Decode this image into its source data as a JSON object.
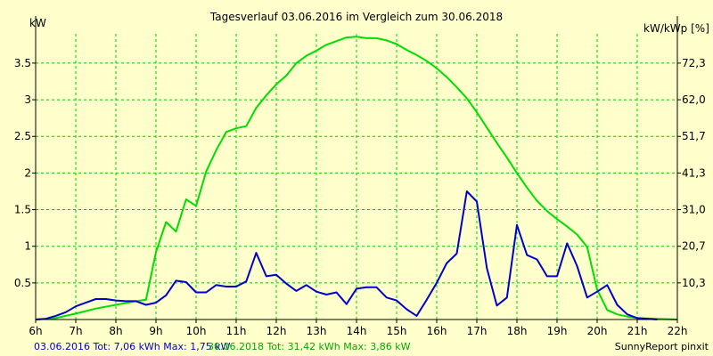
{
  "chart_data": {
    "type": "line",
    "title": "Tagesverlauf 03.06.2016 im Vergleich zum 30.06.2018",
    "ylabel": "kW",
    "y2label": "kW/kWp [%]",
    "xlim": [
      6,
      22
    ],
    "ylim": [
      0,
      3.9
    ],
    "x_ticks": [
      6,
      7,
      8,
      9,
      10,
      11,
      12,
      13,
      14,
      15,
      16,
      17,
      18,
      19,
      20,
      21,
      22
    ],
    "x_tick_labels": [
      "6h",
      "7h",
      "8h",
      "9h",
      "10h",
      "11h",
      "12h",
      "13h",
      "14h",
      "15h",
      "16h",
      "17h",
      "18h",
      "19h",
      "20h",
      "21h",
      "22h"
    ],
    "y_ticks": [
      0.5,
      1,
      1.5,
      2,
      2.5,
      3,
      3.5
    ],
    "y_tick_labels": [
      "0.5",
      "1",
      "1.5",
      "2",
      "2.5",
      "3",
      "3.5"
    ],
    "y2_ticks": [
      0.5,
      1,
      1.5,
      2,
      2.5,
      3,
      3.5
    ],
    "y2_tick_labels": [
      "10,3",
      "20,7",
      "31,0",
      "41,3",
      "51,7",
      "62,0",
      "72,3"
    ],
    "grid": true,
    "colors": {
      "background": "#ffffcc",
      "grid": "#00cc00",
      "axis": "#000000"
    },
    "series": [
      {
        "label": "03.06.2016 Tot: 7,06 kWh Max: 1,75 kW",
        "color": "#0000cc",
        "points": [
          [
            6.0,
            0.0
          ],
          [
            6.25,
            0.01
          ],
          [
            6.5,
            0.05
          ],
          [
            6.75,
            0.1
          ],
          [
            7.0,
            0.18
          ],
          [
            7.25,
            0.23
          ],
          [
            7.5,
            0.28
          ],
          [
            7.75,
            0.28
          ],
          [
            8.0,
            0.26
          ],
          [
            8.25,
            0.25
          ],
          [
            8.5,
            0.25
          ],
          [
            8.75,
            0.2
          ],
          [
            9.0,
            0.23
          ],
          [
            9.25,
            0.33
          ],
          [
            9.5,
            0.53
          ],
          [
            9.75,
            0.51
          ],
          [
            10.0,
            0.37
          ],
          [
            10.25,
            0.37
          ],
          [
            10.5,
            0.47
          ],
          [
            10.75,
            0.45
          ],
          [
            11.0,
            0.45
          ],
          [
            11.25,
            0.52
          ],
          [
            11.5,
            0.91
          ],
          [
            11.75,
            0.59
          ],
          [
            12.0,
            0.61
          ],
          [
            12.25,
            0.49
          ],
          [
            12.5,
            0.39
          ],
          [
            12.75,
            0.47
          ],
          [
            13.0,
            0.38
          ],
          [
            13.25,
            0.34
          ],
          [
            13.5,
            0.37
          ],
          [
            13.75,
            0.21
          ],
          [
            14.0,
            0.42
          ],
          [
            14.25,
            0.44
          ],
          [
            14.5,
            0.44
          ],
          [
            14.75,
            0.3
          ],
          [
            15.0,
            0.26
          ],
          [
            15.25,
            0.14
          ],
          [
            15.5,
            0.05
          ],
          [
            15.75,
            0.27
          ],
          [
            16.0,
            0.5
          ],
          [
            16.25,
            0.77
          ],
          [
            16.5,
            0.9
          ],
          [
            16.75,
            1.75
          ],
          [
            17.0,
            1.61
          ],
          [
            17.25,
            0.7
          ],
          [
            17.5,
            0.19
          ],
          [
            17.75,
            0.3
          ],
          [
            18.0,
            1.29
          ],
          [
            18.25,
            0.88
          ],
          [
            18.5,
            0.82
          ],
          [
            18.75,
            0.59
          ],
          [
            19.0,
            0.59
          ],
          [
            19.25,
            1.04
          ],
          [
            19.5,
            0.73
          ],
          [
            19.75,
            0.3
          ],
          [
            20.0,
            0.38
          ],
          [
            20.25,
            0.47
          ],
          [
            20.5,
            0.2
          ],
          [
            20.75,
            0.07
          ],
          [
            21.0,
            0.02
          ],
          [
            21.5,
            0.0
          ]
        ]
      },
      {
        "label": "30.06.2018 Tot: 31,42 kWh Max: 3,86 kW",
        "color": "#00dd00",
        "points": [
          [
            6.0,
            0.0
          ],
          [
            6.5,
            0.02
          ],
          [
            7.0,
            0.08
          ],
          [
            7.5,
            0.15
          ],
          [
            8.0,
            0.2
          ],
          [
            8.5,
            0.25
          ],
          [
            8.75,
            0.27
          ],
          [
            9.0,
            0.92
          ],
          [
            9.25,
            1.33
          ],
          [
            9.5,
            1.2
          ],
          [
            9.75,
            1.64
          ],
          [
            10.0,
            1.55
          ],
          [
            10.25,
            2.02
          ],
          [
            10.5,
            2.31
          ],
          [
            10.75,
            2.56
          ],
          [
            11.0,
            2.61
          ],
          [
            11.25,
            2.64
          ],
          [
            11.5,
            2.89
          ],
          [
            11.75,
            3.06
          ],
          [
            12.0,
            3.21
          ],
          [
            12.25,
            3.33
          ],
          [
            12.5,
            3.5
          ],
          [
            12.75,
            3.6
          ],
          [
            13.0,
            3.67
          ],
          [
            13.25,
            3.75
          ],
          [
            13.5,
            3.8
          ],
          [
            13.75,
            3.85
          ],
          [
            14.0,
            3.86
          ],
          [
            14.25,
            3.84
          ],
          [
            14.5,
            3.84
          ],
          [
            14.75,
            3.81
          ],
          [
            15.0,
            3.76
          ],
          [
            15.25,
            3.68
          ],
          [
            15.5,
            3.61
          ],
          [
            15.75,
            3.53
          ],
          [
            16.0,
            3.43
          ],
          [
            16.25,
            3.31
          ],
          [
            16.5,
            3.17
          ],
          [
            16.75,
            3.02
          ],
          [
            17.0,
            2.83
          ],
          [
            17.25,
            2.62
          ],
          [
            17.5,
            2.41
          ],
          [
            17.75,
            2.21
          ],
          [
            18.0,
            2.0
          ],
          [
            18.25,
            1.8
          ],
          [
            18.5,
            1.62
          ],
          [
            18.75,
            1.48
          ],
          [
            19.0,
            1.37
          ],
          [
            19.25,
            1.27
          ],
          [
            19.5,
            1.16
          ],
          [
            19.75,
            0.99
          ],
          [
            20.0,
            0.41
          ],
          [
            20.25,
            0.13
          ],
          [
            20.5,
            0.07
          ],
          [
            20.75,
            0.04
          ],
          [
            21.0,
            0.02
          ],
          [
            21.5,
            0.01
          ],
          [
            22.0,
            0.0
          ]
        ]
      }
    ],
    "footer_left": "03.06.2016 Tot: 7,06 kWh Max: 1,75 kW",
    "footer_mid": "30.06.2018 Tot: 31,42 kWh Max: 3,86 kW",
    "footer_right": "SunnyReport pinxit"
  }
}
